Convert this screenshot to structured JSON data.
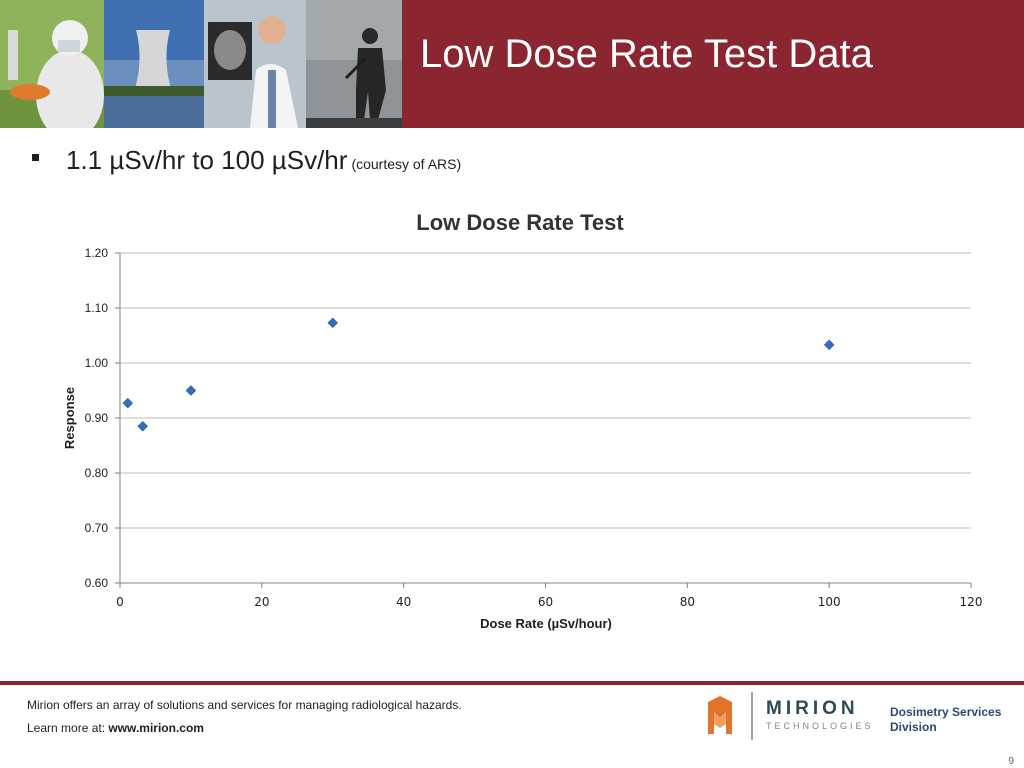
{
  "slide": {
    "title": "Low Dose Rate Test Data",
    "bullet_main": "1.1 µSv/hr to 100 µSv/hr",
    "bullet_note": "(courtesy of ARS)",
    "page_number": "9"
  },
  "footer": {
    "tagline": "Mirion offers an array of solutions and services for managing radiological hazards.",
    "learn_label": "Learn more at:",
    "url": "www.mirion.com",
    "logo_word": "MIRION",
    "logo_sub": "TECHNOLOGIES",
    "division_line1": "Dosimetry Services",
    "division_line2": "Division"
  },
  "colors": {
    "header_bg": "#8b2630",
    "marker": "#2e6fbf",
    "logo_orange": "#e0742a"
  },
  "icons": [
    "field-worker-photo",
    "cooling-tower-photo",
    "doctor-xray-photo",
    "soldier-photo",
    "mirion-logo-icon"
  ],
  "chart_data": {
    "type": "scatter",
    "title": "Low Dose Rate Test",
    "xlabel": "Dose Rate (µSv/hour)",
    "ylabel": "Response",
    "xlim": [
      0,
      120
    ],
    "ylim": [
      0.6,
      1.2
    ],
    "x_ticks": [
      "0",
      "20",
      "40",
      "60",
      "80",
      "100",
      "120"
    ],
    "y_ticks": [
      "0.60",
      "0.70",
      "0.80",
      "0.90",
      "1.00",
      "1.10",
      "1.20"
    ],
    "grid": true,
    "legend": "none",
    "series": [
      {
        "points": [
          {
            "x": 1.1,
            "y": 0.927
          },
          {
            "x": 3.2,
            "y": 0.885
          },
          {
            "x": 10,
            "y": 0.95
          },
          {
            "x": 30,
            "y": 1.073
          },
          {
            "x": 100,
            "y": 1.033
          }
        ]
      }
    ]
  }
}
